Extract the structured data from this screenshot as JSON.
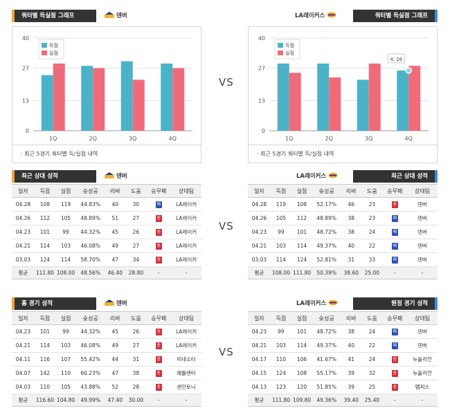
{
  "quarter_section": {
    "left": {
      "title": "쿼터별 득실점 그래프",
      "team": "덴버"
    },
    "right": {
      "title": "쿼터별 득실점 그래프",
      "team": "LA레이커스"
    },
    "note": "최근 5경기 쿼터별 득/실점 내역"
  },
  "chart_data": [
    {
      "type": "bar",
      "categories": [
        "1Q",
        "2Q",
        "3Q",
        "4Q"
      ],
      "ylim": [
        0,
        40
      ],
      "yticks": [
        0,
        13,
        27,
        40
      ],
      "legend": "top-left",
      "series": [
        {
          "name": "득점",
          "color": "#4bb3c8",
          "values": [
            24,
            28,
            30,
            29
          ]
        },
        {
          "name": "실점",
          "color": "#f06b7a",
          "values": [
            29,
            27,
            22,
            27
          ]
        }
      ]
    },
    {
      "type": "bar",
      "categories": [
        "1Q",
        "2Q",
        "3Q",
        "4Q"
      ],
      "ylim": [
        0,
        40
      ],
      "yticks": [
        0,
        13,
        27,
        40
      ],
      "legend": "top-left",
      "tooltip": "4, 26",
      "series": [
        {
          "name": "득점",
          "color": "#4bb3c8",
          "values": [
            29,
            29,
            22,
            26
          ]
        },
        {
          "name": "실점",
          "color": "#f06b7a",
          "values": [
            25,
            23,
            29,
            28
          ]
        }
      ]
    }
  ],
  "vs_label": "VS",
  "columns_left": [
    "일자",
    "득점",
    "실점",
    "슛성공",
    "리바",
    "도움",
    "승무패",
    "상대팀"
  ],
  "columns_right": [
    "일자",
    "득점",
    "실점",
    "슛성공",
    "리바",
    "도움",
    "승무패",
    "상대팀"
  ],
  "recent": {
    "left": {
      "title": "최근 상대 성적",
      "team": "덴버",
      "rows": [
        {
          "date": "04.28",
          "pts": "108",
          "opp_pts": "119",
          "fg": "44.83%",
          "reb": "40",
          "ast": "30",
          "res": "패",
          "res_type": "lose",
          "opp": "LA레이커"
        },
        {
          "date": "04.26",
          "pts": "112",
          "opp_pts": "105",
          "fg": "48.89%",
          "reb": "51",
          "ast": "27",
          "res": "승",
          "res_type": "win",
          "opp": "LA레이커"
        },
        {
          "date": "04.23",
          "pts": "101",
          "opp_pts": "99",
          "fg": "44.32%",
          "reb": "45",
          "ast": "26",
          "res": "승",
          "res_type": "win",
          "opp": "LA레이커"
        },
        {
          "date": "04.21",
          "pts": "114",
          "opp_pts": "103",
          "fg": "46.08%",
          "reb": "49",
          "ast": "27",
          "res": "승",
          "res_type": "win",
          "opp": "LA레이커"
        },
        {
          "date": "03.03",
          "pts": "124",
          "opp_pts": "114",
          "fg": "58.70%",
          "reb": "47",
          "ast": "34",
          "res": "승",
          "res_type": "win",
          "opp": "LA레이커"
        }
      ],
      "avg": {
        "label": "평균",
        "pts": "111.80",
        "opp_pts": "108.00",
        "fg": "48.56%",
        "reb": "46.40",
        "ast": "28.80",
        "res": "-",
        "opp": "-"
      }
    },
    "right": {
      "title": "최근 상대 성적",
      "team": "LA레이커스",
      "rows": [
        {
          "date": "04.28",
          "pts": "119",
          "opp_pts": "108",
          "fg": "52.17%",
          "reb": "46",
          "ast": "23",
          "res": "승",
          "res_type": "win",
          "opp": "덴버"
        },
        {
          "date": "04.26",
          "pts": "105",
          "opp_pts": "112",
          "fg": "48.89%",
          "reb": "38",
          "ast": "23",
          "res": "패",
          "res_type": "lose",
          "opp": "덴버"
        },
        {
          "date": "04.23",
          "pts": "99",
          "opp_pts": "101",
          "fg": "48.72%",
          "reb": "38",
          "ast": "24",
          "res": "패",
          "res_type": "lose",
          "opp": "덴버"
        },
        {
          "date": "04.21",
          "pts": "103",
          "opp_pts": "114",
          "fg": "49.37%",
          "reb": "40",
          "ast": "22",
          "res": "패",
          "res_type": "lose",
          "opp": "덴버"
        },
        {
          "date": "03.03",
          "pts": "114",
          "opp_pts": "124",
          "fg": "52.81%",
          "reb": "31",
          "ast": "33",
          "res": "패",
          "res_type": "lose",
          "opp": "덴버"
        }
      ],
      "avg": {
        "label": "평균",
        "pts": "108.00",
        "opp_pts": "111.80",
        "fg": "50.39%",
        "reb": "38.60",
        "ast": "25.00",
        "res": "-",
        "opp": "-"
      }
    }
  },
  "games": {
    "left": {
      "title": "홈 경기 성적",
      "team": "덴버",
      "rows": [
        {
          "date": "04.23",
          "pts": "101",
          "opp_pts": "99",
          "fg": "44.32%",
          "reb": "45",
          "ast": "26",
          "res": "승",
          "res_type": "win",
          "opp": "LA레이커"
        },
        {
          "date": "04.21",
          "pts": "114",
          "opp_pts": "103",
          "fg": "46.08%",
          "reb": "49",
          "ast": "27",
          "res": "승",
          "res_type": "win",
          "opp": "LA레이커"
        },
        {
          "date": "04.11",
          "pts": "116",
          "opp_pts": "107",
          "fg": "55.42%",
          "reb": "44",
          "ast": "31",
          "res": "승",
          "res_type": "win",
          "opp": "미네소타"
        },
        {
          "date": "04.07",
          "pts": "142",
          "opp_pts": "110",
          "fg": "60.23%",
          "reb": "47",
          "ast": "38",
          "res": "승",
          "res_type": "win",
          "opp": "애틀랜타"
        },
        {
          "date": "04.03",
          "pts": "110",
          "opp_pts": "105",
          "fg": "43.88%",
          "reb": "52",
          "ast": "28",
          "res": "승",
          "res_type": "win",
          "opp": "샌안토니"
        }
      ],
      "avg": {
        "label": "평균",
        "pts": "116.60",
        "opp_pts": "104.80",
        "fg": "49.99%",
        "reb": "47.40",
        "ast": "30.00",
        "res": "-",
        "opp": "-"
      }
    },
    "right": {
      "title": "원정 경기 성적",
      "team": "LA레이커스",
      "rows": [
        {
          "date": "04.23",
          "pts": "99",
          "opp_pts": "101",
          "fg": "48.72%",
          "reb": "38",
          "ast": "24",
          "res": "패",
          "res_type": "lose",
          "opp": "덴버"
        },
        {
          "date": "04.21",
          "pts": "103",
          "opp_pts": "114",
          "fg": "49.37%",
          "reb": "40",
          "ast": "22",
          "res": "패",
          "res_type": "lose",
          "opp": "덴버"
        },
        {
          "date": "04.17",
          "pts": "110",
          "opp_pts": "106",
          "fg": "41.67%",
          "reb": "41",
          "ast": "24",
          "res": "승",
          "res_type": "win",
          "opp": "뉴올리언"
        },
        {
          "date": "04.15",
          "pts": "124",
          "opp_pts": "108",
          "fg": "55.17%",
          "reb": "39",
          "ast": "32",
          "res": "승",
          "res_type": "win",
          "opp": "뉴올리언"
        },
        {
          "date": "04.13",
          "pts": "123",
          "opp_pts": "120",
          "fg": "51.85%",
          "reb": "39",
          "ast": "25",
          "res": "승",
          "res_type": "win",
          "opp": "멤피스"
        }
      ],
      "avg": {
        "label": "평균",
        "pts": "111.80",
        "opp_pts": "109.80",
        "fg": "49.36%",
        "reb": "39.40",
        "ast": "25.40",
        "res": "-",
        "opp": "-"
      }
    }
  }
}
